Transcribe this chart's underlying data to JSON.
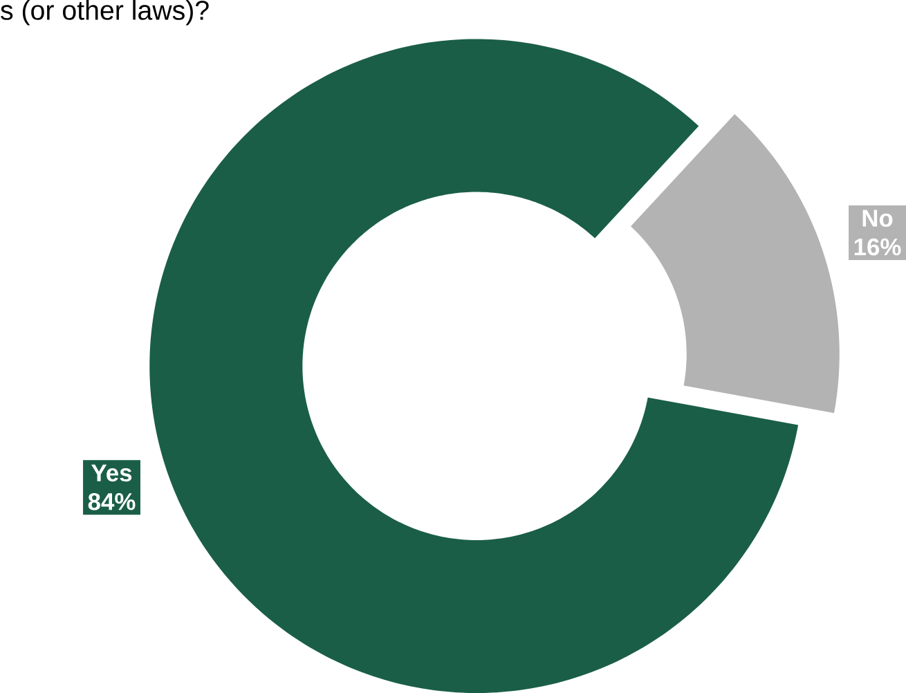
{
  "chart_data": {
    "type": "donut",
    "title": "s (or other laws)?",
    "categories": [
      "Yes",
      "No"
    ],
    "values": [
      84,
      16
    ],
    "value_labels": [
      "84%",
      "16%"
    ],
    "colors": [
      "#1a5e48",
      "#b3b3b3"
    ]
  }
}
